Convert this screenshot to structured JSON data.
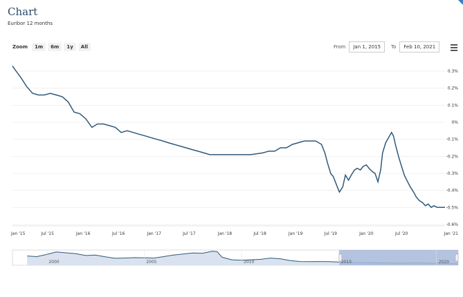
{
  "header": {
    "title": "Chart",
    "subtitle": "Euribor 12 months"
  },
  "toolbar": {
    "zoom_label": "Zoom",
    "buttons": [
      "1m",
      "6m",
      "1y",
      "All"
    ]
  },
  "range": {
    "from_label": "From",
    "from_value": "Jan 1, 2015",
    "to_label": "To",
    "to_value": "Feb 10, 2021"
  },
  "colors": {
    "line": "#2f5878",
    "navigator_fill": "#d9e2ee",
    "navigator_selection": "#a7b9d9",
    "grid": "#e6e6e6"
  },
  "chart_data": {
    "type": "line",
    "title": "Chart",
    "subtitle": "Euribor 12 months",
    "x_ticks": [
      "Jan '15",
      "Jul '15",
      "Jan '16",
      "Jul '16",
      "Jan '17",
      "Jul '17",
      "Jan '18",
      "Jul '18",
      "Jan '19",
      "Jul '19",
      "Jan '20",
      "Jul '20",
      "Jan '21"
    ],
    "y_ticks": [
      "0.3%",
      "0.2%",
      "0.1%",
      "0%",
      "-0.1%",
      "-0.2%",
      "-0.3%",
      "-0.4%",
      "-0.5%",
      "-0.6%"
    ],
    "ylim": [
      -0.6,
      0.3
    ],
    "xlim": [
      "2015-01-01",
      "2021-02-10"
    ],
    "grid": true,
    "series": [
      {
        "points": [
          [
            "2015-01-01",
            0.33
          ],
          [
            "2015-01-20",
            0.3
          ],
          [
            "2015-02-15",
            0.26
          ],
          [
            "2015-03-15",
            0.21
          ],
          [
            "2015-04-15",
            0.17
          ],
          [
            "2015-05-15",
            0.16
          ],
          [
            "2015-06-15",
            0.16
          ],
          [
            "2015-07-15",
            0.17
          ],
          [
            "2015-08-15",
            0.16
          ],
          [
            "2015-09-15",
            0.15
          ],
          [
            "2015-10-15",
            0.12
          ],
          [
            "2015-11-15",
            0.06
          ],
          [
            "2015-12-15",
            0.05
          ],
          [
            "2016-01-15",
            0.02
          ],
          [
            "2016-02-15",
            -0.03
          ],
          [
            "2016-03-15",
            -0.01
          ],
          [
            "2016-04-15",
            -0.01
          ],
          [
            "2016-05-15",
            -0.02
          ],
          [
            "2016-06-15",
            -0.03
          ],
          [
            "2016-07-15",
            -0.06
          ],
          [
            "2016-08-15",
            -0.05
          ],
          [
            "2016-09-15",
            -0.06
          ],
          [
            "2016-10-15",
            -0.07
          ],
          [
            "2016-11-15",
            -0.08
          ],
          [
            "2016-12-15",
            -0.09
          ],
          [
            "2017-01-15",
            -0.1
          ],
          [
            "2017-02-15",
            -0.11
          ],
          [
            "2017-03-15",
            -0.12
          ],
          [
            "2017-04-15",
            -0.13
          ],
          [
            "2017-05-15",
            -0.14
          ],
          [
            "2017-06-15",
            -0.15
          ],
          [
            "2017-07-15",
            -0.16
          ],
          [
            "2017-08-15",
            -0.17
          ],
          [
            "2017-09-15",
            -0.18
          ],
          [
            "2017-10-15",
            -0.19
          ],
          [
            "2017-11-15",
            -0.19
          ],
          [
            "2017-12-15",
            -0.19
          ],
          [
            "2018-01-15",
            -0.19
          ],
          [
            "2018-03-15",
            -0.19
          ],
          [
            "2018-05-15",
            -0.19
          ],
          [
            "2018-07-15",
            -0.18
          ],
          [
            "2018-08-15",
            -0.17
          ],
          [
            "2018-09-15",
            -0.17
          ],
          [
            "2018-10-15",
            -0.15
          ],
          [
            "2018-11-15",
            -0.15
          ],
          [
            "2018-12-15",
            -0.13
          ],
          [
            "2019-01-15",
            -0.12
          ],
          [
            "2019-02-15",
            -0.11
          ],
          [
            "2019-03-15",
            -0.11
          ],
          [
            "2019-04-15",
            -0.11
          ],
          [
            "2019-05-15",
            -0.13
          ],
          [
            "2019-06-01",
            -0.18
          ],
          [
            "2019-06-15",
            -0.24
          ],
          [
            "2019-07-01",
            -0.3
          ],
          [
            "2019-07-15",
            -0.32
          ],
          [
            "2019-08-01",
            -0.37
          ],
          [
            "2019-08-15",
            -0.41
          ],
          [
            "2019-09-01",
            -0.38
          ],
          [
            "2019-09-15",
            -0.31
          ],
          [
            "2019-10-01",
            -0.34
          ],
          [
            "2019-10-15",
            -0.31
          ],
          [
            "2019-11-01",
            -0.28
          ],
          [
            "2019-11-15",
            -0.27
          ],
          [
            "2019-12-01",
            -0.28
          ],
          [
            "2019-12-15",
            -0.26
          ],
          [
            "2020-01-01",
            -0.25
          ],
          [
            "2020-01-15",
            -0.27
          ],
          [
            "2020-02-01",
            -0.29
          ],
          [
            "2020-02-15",
            -0.3
          ],
          [
            "2020-03-01",
            -0.35
          ],
          [
            "2020-03-15",
            -0.28
          ],
          [
            "2020-03-25",
            -0.18
          ],
          [
            "2020-04-10",
            -0.12
          ],
          [
            "2020-04-25",
            -0.09
          ],
          [
            "2020-05-10",
            -0.06
          ],
          [
            "2020-05-20",
            -0.08
          ],
          [
            "2020-06-01",
            -0.14
          ],
          [
            "2020-06-15",
            -0.2
          ],
          [
            "2020-07-01",
            -0.26
          ],
          [
            "2020-07-15",
            -0.31
          ],
          [
            "2020-08-01",
            -0.35
          ],
          [
            "2020-08-15",
            -0.38
          ],
          [
            "2020-09-01",
            -0.41
          ],
          [
            "2020-09-15",
            -0.44
          ],
          [
            "2020-10-01",
            -0.46
          ],
          [
            "2020-10-15",
            -0.47
          ],
          [
            "2020-11-01",
            -0.49
          ],
          [
            "2020-11-15",
            -0.48
          ],
          [
            "2020-12-01",
            -0.5
          ],
          [
            "2020-12-15",
            -0.49
          ],
          [
            "2021-01-01",
            -0.5
          ],
          [
            "2021-01-15",
            -0.5
          ],
          [
            "2021-02-10",
            -0.5
          ]
        ]
      }
    ]
  },
  "navigator": {
    "labels": [
      "2000",
      "2005",
      "2010",
      "2015",
      "2020"
    ],
    "points": [
      [
        "1999-01-01",
        3.2
      ],
      [
        "1999-07-01",
        2.9
      ],
      [
        "2000-01-01",
        3.9
      ],
      [
        "2000-07-01",
        5.1
      ],
      [
        "2001-01-01",
        4.7
      ],
      [
        "2001-07-01",
        4.3
      ],
      [
        "2002-01-01",
        3.4
      ],
      [
        "2002-07-01",
        3.6
      ],
      [
        "2003-01-01",
        2.8
      ],
      [
        "2003-07-01",
        2.1
      ],
      [
        "2004-01-01",
        2.2
      ],
      [
        "2004-07-01",
        2.4
      ],
      [
        "2005-01-01",
        2.3
      ],
      [
        "2005-07-01",
        2.2
      ],
      [
        "2006-01-01",
        2.9
      ],
      [
        "2006-07-01",
        3.6
      ],
      [
        "2007-01-01",
        4.1
      ],
      [
        "2007-07-01",
        4.6
      ],
      [
        "2008-01-01",
        4.5
      ],
      [
        "2008-07-01",
        5.4
      ],
      [
        "2008-10-01",
        5.2
      ],
      [
        "2009-01-01",
        2.6
      ],
      [
        "2009-07-01",
        1.4
      ],
      [
        "2010-01-01",
        1.2
      ],
      [
        "2010-07-01",
        1.4
      ],
      [
        "2011-01-01",
        1.6
      ],
      [
        "2011-07-01",
        2.2
      ],
      [
        "2012-01-01",
        1.8
      ],
      [
        "2012-07-01",
        1.0
      ],
      [
        "2013-01-01",
        0.57
      ],
      [
        "2013-07-01",
        0.52
      ],
      [
        "2014-01-01",
        0.56
      ],
      [
        "2014-07-01",
        0.49
      ],
      [
        "2015-01-01",
        0.3
      ],
      [
        "2016-01-01",
        0.05
      ],
      [
        "2017-01-01",
        -0.1
      ],
      [
        "2018-01-01",
        -0.19
      ],
      [
        "2019-01-01",
        -0.12
      ],
      [
        "2020-01-01",
        -0.25
      ],
      [
        "2021-01-01",
        -0.5
      ],
      [
        "2021-02-10",
        -0.5
      ]
    ],
    "xlim": [
      "1998-04-01",
      "2021-02-10"
    ],
    "ylim": [
      -1.2,
      6.0
    ],
    "selection": [
      "2015-01-01",
      "2021-02-10"
    ]
  }
}
